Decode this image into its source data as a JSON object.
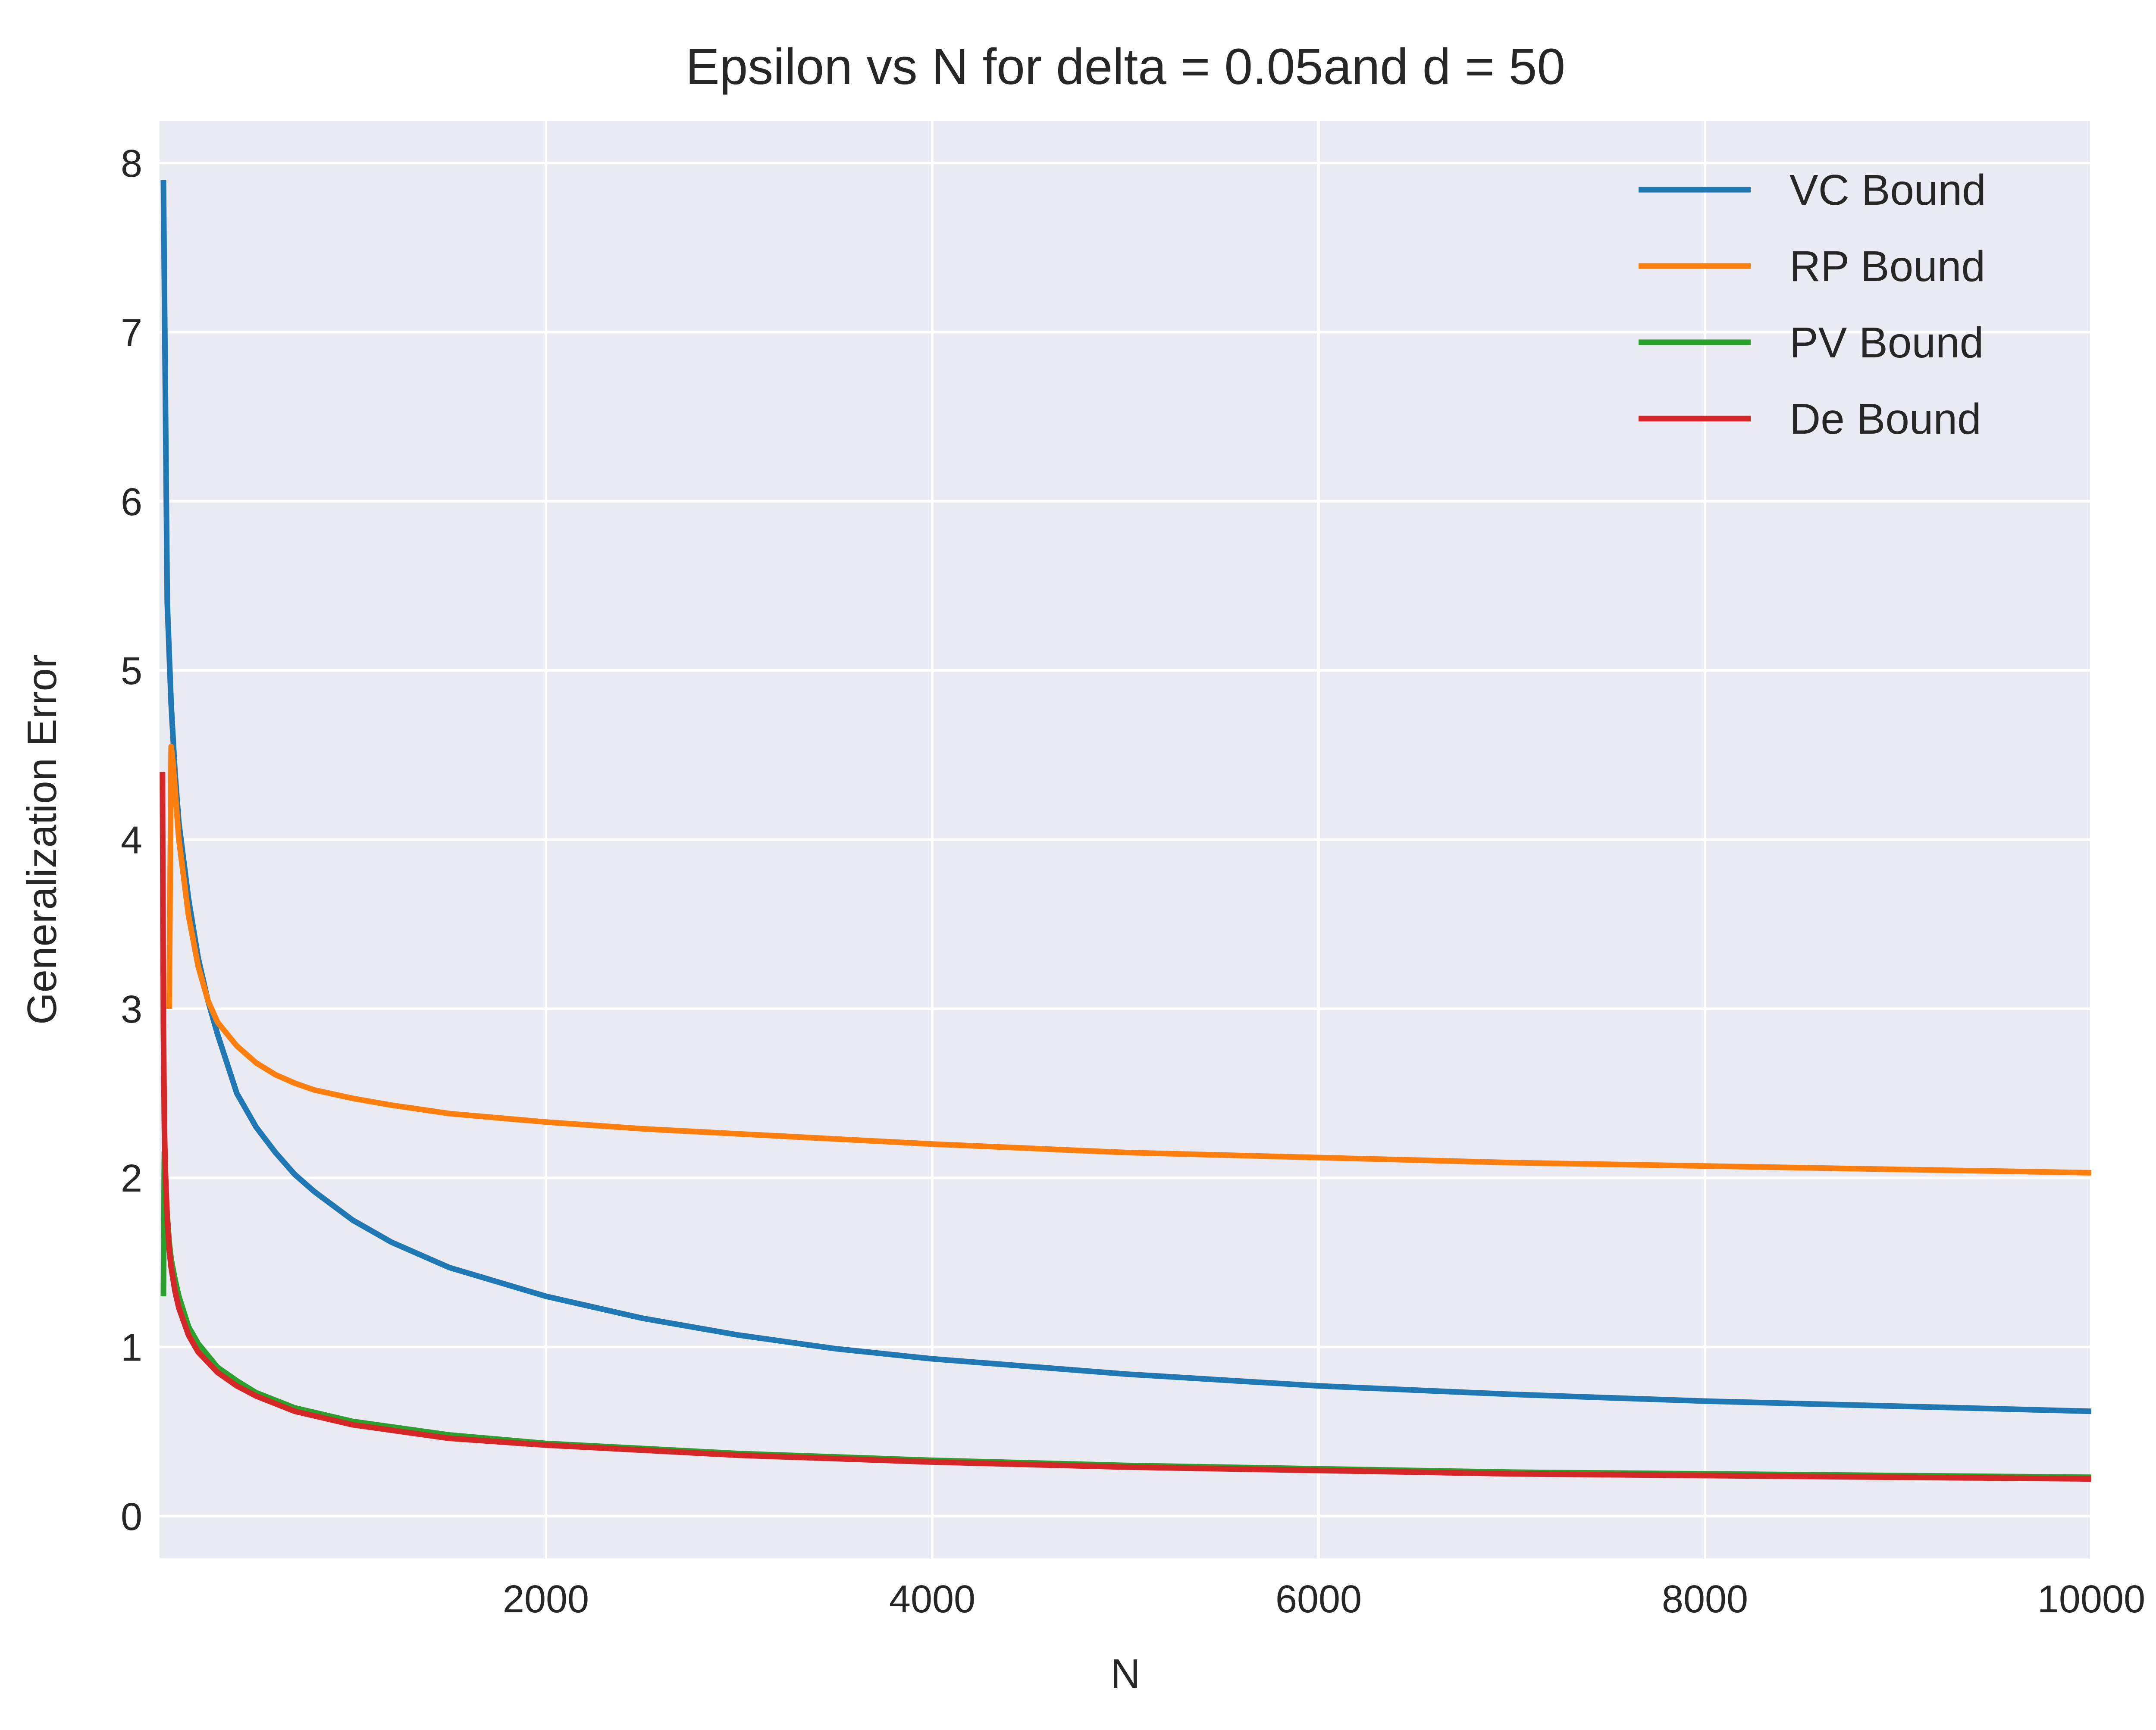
{
  "chart_data": {
    "type": "line",
    "title": "Epsilon vs N for delta = 0.05and d = 50",
    "xlabel": "N",
    "ylabel": "Generalization Error",
    "xlim": [
      0,
      10000
    ],
    "ylim": [
      -0.25,
      8.25
    ],
    "xticks": [
      2000,
      4000,
      6000,
      8000,
      10000
    ],
    "xtick_labels": [
      "2000",
      "4000",
      "6000",
      "8000",
      "10000"
    ],
    "yticks": [
      0,
      1,
      2,
      3,
      4,
      5,
      6,
      7,
      8
    ],
    "ytick_labels": [
      "0",
      "1",
      "2",
      "3",
      "4",
      "5",
      "6",
      "7",
      "8"
    ],
    "grid": true,
    "legend": "top-right",
    "background": "#EAEAF2",
    "series": [
      {
        "name": "VC Bound",
        "color": "#1F77B4",
        "x": [
          20,
          40,
          60,
          80,
          100,
          150,
          200,
          250,
          300,
          400,
          500,
          600,
          700,
          800,
          1000,
          1200,
          1500,
          2000,
          2500,
          3000,
          3500,
          4000,
          5000,
          6000,
          7000,
          8000,
          9000,
          10000
        ],
        "y": [
          7.9,
          5.4,
          4.8,
          4.4,
          4.1,
          3.65,
          3.3,
          3.05,
          2.85,
          2.5,
          2.3,
          2.15,
          2.02,
          1.92,
          1.75,
          1.62,
          1.47,
          1.3,
          1.17,
          1.07,
          0.99,
          0.93,
          0.84,
          0.77,
          0.72,
          0.68,
          0.65,
          0.62
        ]
      },
      {
        "name": "RP Bound",
        "color": "#FF7F0E",
        "x": [
          50,
          60,
          70,
          80,
          90,
          100,
          150,
          200,
          250,
          300,
          400,
          500,
          600,
          700,
          800,
          1000,
          1200,
          1500,
          2000,
          2500,
          3000,
          3500,
          4000,
          5000,
          6000,
          7000,
          8000,
          9000,
          10000
        ],
        "y": [
          3.0,
          4.55,
          4.45,
          4.3,
          4.15,
          4.0,
          3.55,
          3.25,
          3.05,
          2.92,
          2.78,
          2.68,
          2.61,
          2.56,
          2.52,
          2.47,
          2.43,
          2.38,
          2.33,
          2.29,
          2.26,
          2.23,
          2.2,
          2.15,
          2.12,
          2.09,
          2.07,
          2.05,
          2.03
        ]
      },
      {
        "name": "PV Bound",
        "color": "#2CA02C",
        "x": [
          20,
          25,
          30,
          40,
          50,
          60,
          80,
          100,
          150,
          200,
          300,
          400,
          500,
          700,
          1000,
          1500,
          2000,
          3000,
          4000,
          5000,
          6000,
          7000,
          8000,
          9000,
          10000
        ],
        "y": [
          1.3,
          2.15,
          1.95,
          1.78,
          1.62,
          1.52,
          1.4,
          1.3,
          1.12,
          1.02,
          0.88,
          0.8,
          0.73,
          0.64,
          0.56,
          0.48,
          0.43,
          0.37,
          0.33,
          0.3,
          0.28,
          0.26,
          0.25,
          0.24,
          0.23
        ]
      },
      {
        "name": "De Bound",
        "color": "#D62728",
        "x": [
          15,
          20,
          25,
          30,
          40,
          50,
          60,
          80,
          100,
          150,
          200,
          300,
          400,
          500,
          700,
          1000,
          1500,
          2000,
          3000,
          4000,
          5000,
          6000,
          7000,
          8000,
          9000,
          10000
        ],
        "y": [
          4.4,
          2.9,
          2.3,
          2.05,
          1.75,
          1.58,
          1.47,
          1.33,
          1.23,
          1.07,
          0.97,
          0.85,
          0.77,
          0.71,
          0.62,
          0.54,
          0.46,
          0.42,
          0.36,
          0.32,
          0.29,
          0.27,
          0.25,
          0.24,
          0.23,
          0.22
        ]
      }
    ]
  }
}
